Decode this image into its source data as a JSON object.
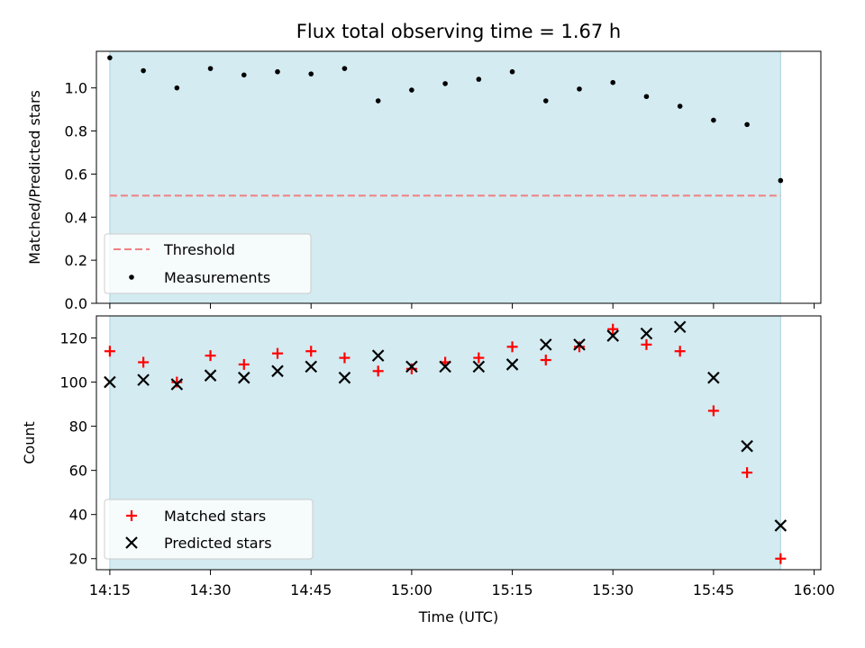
{
  "chart_data": {
    "type": "scatter",
    "title": "Flux total observing time = 1.67 h",
    "xlabel": "Time (UTC)",
    "x_ticks": [
      "14:15",
      "14:30",
      "14:45",
      "15:00",
      "15:15",
      "15:30",
      "15:45",
      "16:00"
    ],
    "x_range": [
      "14:13",
      "16:01"
    ],
    "observing_window": [
      "14:15",
      "15:55"
    ],
    "times": [
      "14:15",
      "14:20",
      "14:25",
      "14:30",
      "14:35",
      "14:40",
      "14:45",
      "14:50",
      "14:55",
      "15:00",
      "15:05",
      "15:10",
      "15:15",
      "15:20",
      "15:25",
      "15:30",
      "15:35",
      "15:40",
      "15:45",
      "15:50",
      "15:55"
    ],
    "panels": [
      {
        "ylabel": "Matched/Predicted stars",
        "ylim": [
          0,
          1.17
        ],
        "yticks": [
          0.0,
          0.2,
          0.4,
          0.6,
          0.8,
          1.0
        ],
        "threshold": 0.5,
        "legend_position": "lower-left",
        "series": [
          {
            "name": "Threshold",
            "kind": "line",
            "color": "#f08080"
          },
          {
            "name": "Measurements",
            "kind": "points",
            "color": "#000000",
            "values": [
              1.14,
              1.08,
              1.0,
              1.09,
              1.06,
              1.075,
              1.065,
              1.09,
              0.94,
              0.99,
              1.02,
              1.04,
              1.075,
              0.94,
              0.995,
              1.025,
              0.96,
              0.915,
              0.85,
              0.83,
              0.57
            ]
          }
        ]
      },
      {
        "ylabel": "Count",
        "ylim": [
          15,
          130
        ],
        "yticks": [
          20,
          40,
          60,
          80,
          100,
          120
        ],
        "legend_position": "lower-left",
        "series": [
          {
            "name": "Matched stars",
            "kind": "plus",
            "color": "#ff0000",
            "values": [
              114,
              109,
              100,
              112,
              108,
              113,
              114,
              111,
              105,
              106,
              109,
              111,
              116,
              110,
              116,
              124,
              117,
              114,
              87,
              59,
              20
            ]
          },
          {
            "name": "Predicted stars",
            "kind": "cross",
            "color": "#000000",
            "values": [
              100,
              101,
              99,
              103,
              102,
              105,
              107,
              102,
              112,
              107,
              107,
              107,
              108,
              117,
              117,
              121,
              122,
              125,
              102,
              71,
              35
            ]
          }
        ]
      }
    ],
    "colors": {
      "observing_band": "#d3ebf1",
      "threshold": "#f08080",
      "matched": "#ff0000",
      "predicted": "#000000"
    }
  }
}
